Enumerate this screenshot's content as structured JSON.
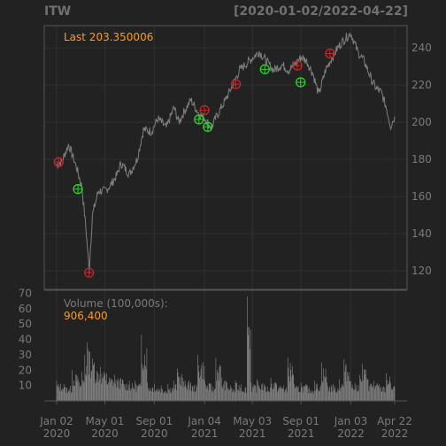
{
  "header": {
    "symbol": "ITW",
    "date_range": "[2020-01-02/2022-04-22]"
  },
  "annotations": {
    "last_label": "Last 203.350006",
    "volume_label": "Volume (100,000s):",
    "volume_value": "906,400"
  },
  "colors": {
    "background": "#222222",
    "plot_border": "#555555",
    "grid": "#303030",
    "price_line": "#7f7f7f",
    "volume_bar": "#8a8a8a",
    "axis_text": "#7a7a7a",
    "highlight_text": "#ff9a1a",
    "buy_marker": "#2bd62b",
    "sell_marker": "#c0282a"
  },
  "chart_data": [
    {
      "type": "line",
      "title": "ITW",
      "x_range": [
        "2020-01-02",
        "2022-04-22"
      ],
      "ylim": [
        110,
        252
      ],
      "y_ticks": [
        120,
        140,
        160,
        180,
        200,
        220,
        240
      ],
      "grid": true,
      "series": [
        {
          "x": [
            "2020-01-02",
            "2020-01-15",
            "2020-02-01",
            "2020-02-20",
            "2020-03-05",
            "2020-03-16",
            "2020-03-23",
            "2020-03-31",
            "2020-04-15",
            "2020-05-01",
            "2020-05-15",
            "2020-06-01",
            "2020-06-10",
            "2020-07-01",
            "2020-07-20",
            "2020-08-05",
            "2020-08-25",
            "2020-09-10",
            "2020-10-01",
            "2020-10-20",
            "2020-11-01",
            "2020-11-15",
            "2020-12-01",
            "2020-12-20",
            "2021-01-05",
            "2021-01-20",
            "2021-02-05",
            "2021-02-25",
            "2021-03-15",
            "2021-04-01",
            "2021-04-20",
            "2021-05-05",
            "2021-05-20",
            "2021-06-10",
            "2021-06-25",
            "2021-07-15",
            "2021-08-01",
            "2021-08-20",
            "2021-09-01",
            "2021-09-15",
            "2021-10-01",
            "2021-10-15",
            "2021-11-01",
            "2021-11-15",
            "2021-12-01",
            "2021-12-15",
            "2022-01-03",
            "2022-01-20",
            "2022-02-05",
            "2022-02-25",
            "2022-03-08",
            "2022-03-20",
            "2022-04-01",
            "2022-04-12",
            "2022-04-22"
          ],
          "values": [
            177,
            179,
            188,
            176,
            165,
            140,
            120,
            150,
            163,
            163,
            166,
            172,
            178,
            172,
            180,
            196,
            195,
            202,
            197,
            208,
            200,
            206,
            212,
            205,
            202,
            197,
            204,
            212,
            220,
            228,
            232,
            235,
            238,
            232,
            228,
            231,
            228,
            232,
            235,
            233,
            226,
            215,
            228,
            234,
            240,
            244,
            248,
            238,
            233,
            222,
            218,
            216,
            208,
            198,
            203
          ]
        }
      ],
      "markers": [
        {
          "kind": "sell",
          "x": "2020-01-07",
          "y": 178.5
        },
        {
          "kind": "buy",
          "x": "2020-02-24",
          "y": 164
        },
        {
          "kind": "sell",
          "x": "2020-03-23",
          "y": 119
        },
        {
          "kind": "buy",
          "x": "2020-12-21",
          "y": 201.5
        },
        {
          "kind": "sell",
          "x": "2021-01-04",
          "y": 206.5
        },
        {
          "kind": "buy",
          "x": "2021-01-12",
          "y": 197.5
        },
        {
          "kind": "sell",
          "x": "2021-03-23",
          "y": 220.5
        },
        {
          "kind": "buy",
          "x": "2021-06-03",
          "y": 228.5
        },
        {
          "kind": "sell",
          "x": "2021-08-23",
          "y": 230.5
        },
        {
          "kind": "buy",
          "x": "2021-08-31",
          "y": 221.5
        },
        {
          "kind": "sell",
          "x": "2021-11-12",
          "y": 237
        }
      ]
    },
    {
      "type": "bar",
      "title": "Volume (100,000s):",
      "ylim": [
        0,
        72
      ],
      "y_ticks": [
        10,
        20,
        30,
        40,
        50,
        60,
        70
      ],
      "x_ticks": [
        {
          "x": "2020-01-02",
          "label": "Jan 02\n2020"
        },
        {
          "x": "2020-05-01",
          "label": "May 01\n2020"
        },
        {
          "x": "2020-09-01",
          "label": "Sep 01\n2020"
        },
        {
          "x": "2021-01-04",
          "label": "Jan 04\n2021"
        },
        {
          "x": "2021-05-03",
          "label": "May 03\n2021"
        },
        {
          "x": "2021-09-01",
          "label": "Sep 01\n2021"
        },
        {
          "x": "2022-01-03",
          "label": "Jan 03\n2022"
        },
        {
          "x": "2022-04-22",
          "label": "Apr 22\n2022"
        }
      ],
      "x": [
        "2020-01-02",
        "2020-01-20",
        "2020-02-10",
        "2020-02-25",
        "2020-03-05",
        "2020-03-12",
        "2020-03-18",
        "2020-03-25",
        "2020-04-05",
        "2020-04-20",
        "2020-05-05",
        "2020-05-25",
        "2020-06-15",
        "2020-07-01",
        "2020-07-15",
        "2020-07-31",
        "2020-08-15",
        "2020-09-01",
        "2020-09-18",
        "2020-10-05",
        "2020-10-20",
        "2020-10-28",
        "2020-11-10",
        "2020-12-01",
        "2020-12-18",
        "2021-01-05",
        "2021-01-20",
        "2021-02-01",
        "2021-02-15",
        "2021-03-01",
        "2021-03-10",
        "2021-03-22",
        "2021-04-05",
        "2021-04-20",
        "2021-04-30",
        "2021-05-15",
        "2021-06-01",
        "2021-06-18",
        "2021-07-01",
        "2021-07-20",
        "2021-07-30",
        "2021-08-15",
        "2021-09-01",
        "2021-09-17",
        "2021-10-05",
        "2021-10-22",
        "2021-11-05",
        "2021-11-20",
        "2021-12-05",
        "2021-12-17",
        "2022-01-03",
        "2022-01-25",
        "2022-02-01",
        "2022-02-15",
        "2022-03-01",
        "2022-03-15",
        "2022-04-01",
        "2022-04-12",
        "2022-04-22"
      ],
      "values": [
        13,
        11,
        20,
        14,
        19,
        30,
        38,
        32,
        25,
        22,
        18,
        17,
        14,
        13,
        13,
        43,
        12,
        11,
        10,
        11,
        13,
        21,
        15,
        12,
        30,
        13,
        11,
        28,
        15,
        12,
        10,
        13,
        11,
        68,
        12,
        14,
        11,
        15,
        12,
        10,
        28,
        11,
        12,
        10,
        13,
        25,
        12,
        11,
        14,
        27,
        13,
        17,
        24,
        14,
        13,
        11,
        18,
        12,
        9
      ]
    }
  ]
}
